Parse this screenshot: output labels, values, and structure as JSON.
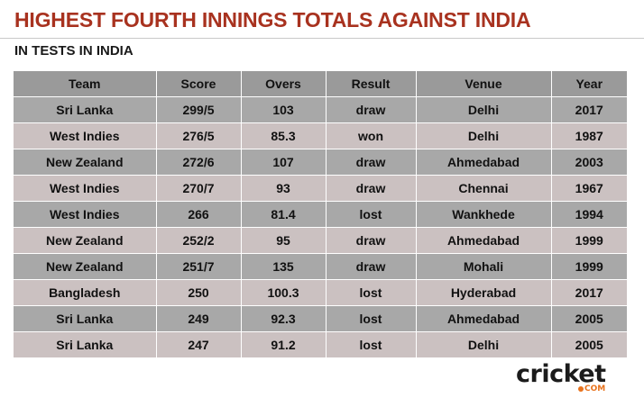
{
  "title": "HIGHEST FOURTH INNINGS TOTALS AGAINST INDIA",
  "subtitle": "IN TESTS IN INDIA",
  "colors": {
    "title": "#a8321f",
    "header_bg": "#9a9a9a",
    "row_dark_bg": "#a8a8a8",
    "row_light_bg": "#cbc1c1",
    "logo_accent": "#e8721c"
  },
  "table": {
    "columns": [
      "Team",
      "Score",
      "Overs",
      "Result",
      "Venue",
      "Year"
    ],
    "rows": [
      [
        "Sri Lanka",
        "299/5",
        "103",
        "draw",
        "Delhi",
        "2017"
      ],
      [
        "West Indies",
        "276/5",
        "85.3",
        "won",
        "Delhi",
        "1987"
      ],
      [
        "New Zealand",
        "272/6",
        "107",
        "draw",
        "Ahmedabad",
        "2003"
      ],
      [
        "West Indies",
        "270/7",
        "93",
        "draw",
        "Chennai",
        "1967"
      ],
      [
        "West Indies",
        "266",
        "81.4",
        "lost",
        "Wankhede",
        "1994"
      ],
      [
        "New Zealand",
        "252/2",
        "95",
        "draw",
        "Ahmedabad",
        "1999"
      ],
      [
        "New Zealand",
        "251/7",
        "135",
        "draw",
        "Mohali",
        "1999"
      ],
      [
        "Bangladesh",
        "250",
        "100.3",
        "lost",
        "Hyderabad",
        "2017"
      ],
      [
        "Sri Lanka",
        "249",
        "92.3",
        "lost",
        "Ahmedabad",
        "2005"
      ],
      [
        "Sri Lanka",
        "247",
        "91.2",
        "lost",
        "Delhi",
        "2005"
      ]
    ]
  },
  "logo": {
    "main": "cricket",
    "sub": "COM"
  }
}
